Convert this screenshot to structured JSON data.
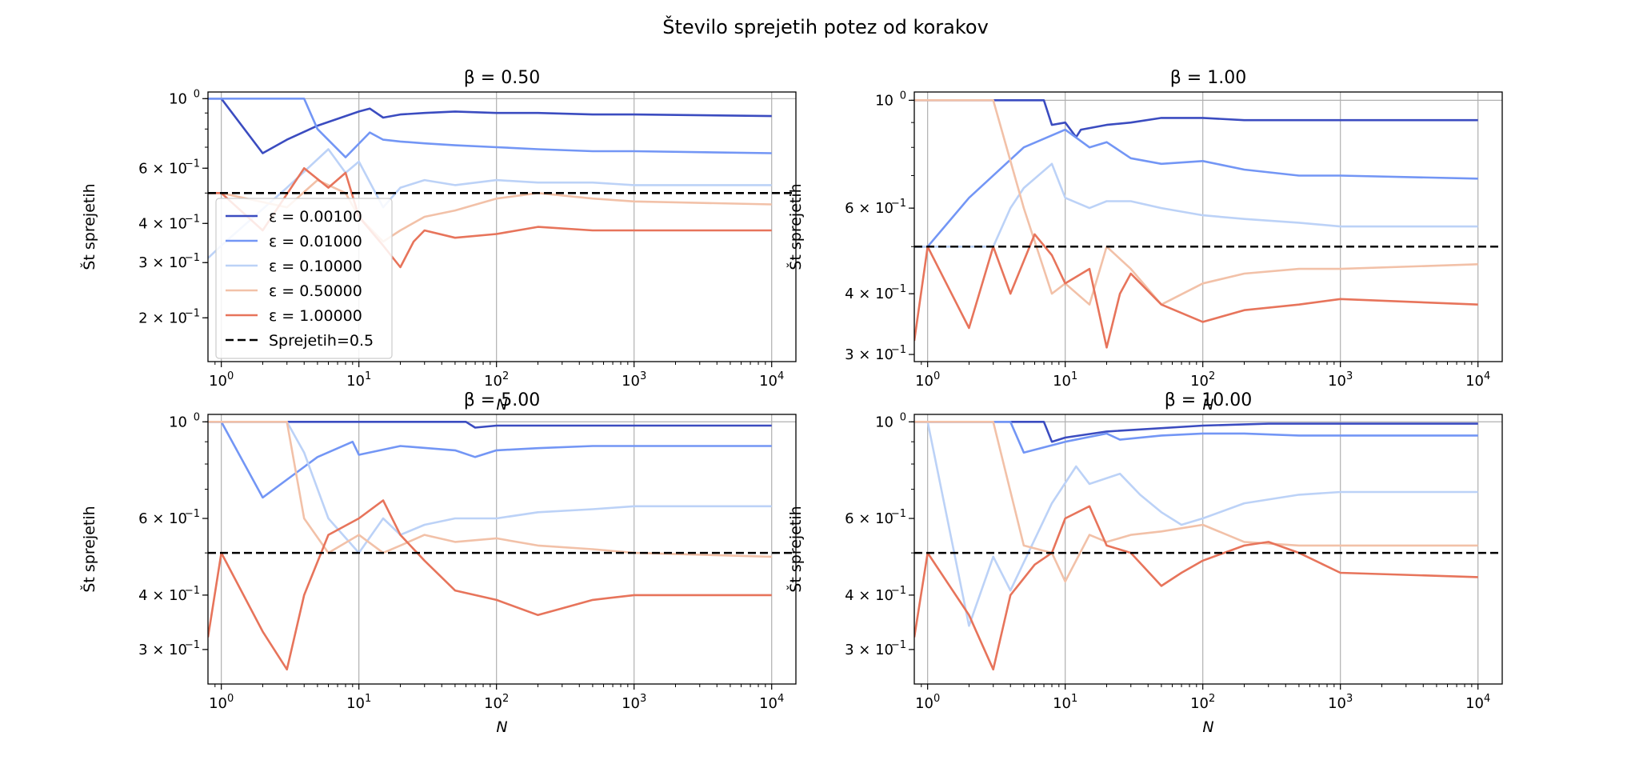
{
  "figure_title": "Število sprejetih potez od korakov",
  "chart_data": [
    {
      "type": "line",
      "title": "β = 0.50",
      "xlabel": "N",
      "ylabel": "Št sprejetih",
      "xscale": "log",
      "yscale": "log",
      "xlim": [
        0.8,
        15000
      ],
      "ylim": [
        0.145,
        1.05
      ],
      "xticks": [
        {
          "v": 1,
          "e": "0"
        },
        {
          "v": 10,
          "e": "1"
        },
        {
          "v": 100,
          "e": "2"
        },
        {
          "v": 1000,
          "e": "3"
        },
        {
          "v": 10000,
          "e": "4"
        }
      ],
      "yticks": [
        {
          "v": 1.0,
          "label": "10",
          "exp": "0"
        },
        {
          "v": 0.6,
          "label": "6 × 10",
          "exp": "−1"
        },
        {
          "v": 0.4,
          "label": "4 × 10",
          "exp": "−1"
        },
        {
          "v": 0.3,
          "label": "3 × 10",
          "exp": "−1"
        },
        {
          "v": 0.2,
          "label": "2 × 10",
          "exp": "−1"
        }
      ],
      "grid": true,
      "legend": "center-left",
      "reference_line": {
        "name": "Sprejetih=0.5",
        "y": 0.5,
        "color": "#000000"
      },
      "series": [
        {
          "name": "ε = 0.00100",
          "color": "#3b4cc0",
          "x": [
            0.8,
            1,
            2,
            3,
            5,
            10,
            12,
            15,
            20,
            30,
            50,
            100,
            200,
            500,
            1000,
            10000
          ],
          "y": [
            1.0,
            1.0,
            0.67,
            0.74,
            0.82,
            0.91,
            0.93,
            0.87,
            0.89,
            0.9,
            0.91,
            0.9,
            0.9,
            0.89,
            0.89,
            0.88
          ]
        },
        {
          "name": "ε = 0.01000",
          "color": "#7396f5",
          "x": [
            0.8,
            1,
            2,
            4,
            5,
            8,
            12,
            15,
            20,
            30,
            50,
            100,
            200,
            500,
            1000,
            10000
          ],
          "y": [
            1.0,
            1.0,
            1.0,
            1.0,
            0.8,
            0.65,
            0.78,
            0.74,
            0.73,
            0.72,
            0.71,
            0.7,
            0.69,
            0.68,
            0.68,
            0.67
          ]
        },
        {
          "name": "ε = 0.10000",
          "color": "#bcd2f7",
          "x": [
            0.8,
            1,
            3,
            6,
            8,
            10,
            15,
            20,
            30,
            50,
            100,
            200,
            500,
            1000,
            10000
          ],
          "y": [
            0.31,
            0.34,
            0.52,
            0.69,
            0.58,
            0.63,
            0.45,
            0.52,
            0.55,
            0.53,
            0.55,
            0.54,
            0.54,
            0.53,
            0.53
          ]
        },
        {
          "name": "ε = 0.50000",
          "color": "#f2c1a8",
          "x": [
            0.8,
            1,
            3,
            5,
            8,
            10,
            15,
            20,
            30,
            50,
            100,
            200,
            500,
            1000,
            10000
          ],
          "y": [
            0.5,
            0.5,
            0.45,
            0.55,
            0.5,
            0.42,
            0.35,
            0.38,
            0.42,
            0.44,
            0.48,
            0.5,
            0.48,
            0.47,
            0.46
          ]
        },
        {
          "name": "ε = 1.00000",
          "color": "#e7745b",
          "x": [
            0.8,
            1,
            2,
            4,
            6,
            8,
            10,
            15,
            20,
            25,
            30,
            50,
            100,
            200,
            500,
            1000,
            10000
          ],
          "y": [
            0.5,
            0.5,
            0.38,
            0.6,
            0.52,
            0.58,
            0.42,
            0.34,
            0.29,
            0.35,
            0.38,
            0.36,
            0.37,
            0.39,
            0.38,
            0.38,
            0.38
          ]
        }
      ]
    },
    {
      "type": "line",
      "title": "β = 1.00",
      "xlabel": "N",
      "ylabel": "Št sprejetih",
      "xscale": "log",
      "yscale": "log",
      "xlim": [
        0.8,
        15000
      ],
      "ylim": [
        0.29,
        1.04
      ],
      "xticks": [
        {
          "v": 1,
          "e": "0"
        },
        {
          "v": 10,
          "e": "1"
        },
        {
          "v": 100,
          "e": "2"
        },
        {
          "v": 1000,
          "e": "3"
        },
        {
          "v": 10000,
          "e": "4"
        }
      ],
      "yticks": [
        {
          "v": 1.0,
          "label": "10",
          "exp": "0"
        },
        {
          "v": 0.6,
          "label": "6 × 10",
          "exp": "−1"
        },
        {
          "v": 0.4,
          "label": "4 × 10",
          "exp": "−1"
        },
        {
          "v": 0.3,
          "label": "3 × 10",
          "exp": "−1"
        }
      ],
      "grid": true,
      "reference_line": {
        "name": "Sprejetih=0.5",
        "y": 0.5,
        "color": "#000000"
      },
      "series": [
        {
          "name": "ε = 0.00100",
          "color": "#3b4cc0",
          "x": [
            0.8,
            1,
            3,
            7,
            8,
            10,
            12,
            13,
            20,
            30,
            50,
            100,
            200,
            500,
            1000,
            10000
          ],
          "y": [
            1.0,
            1.0,
            1.0,
            1.0,
            0.89,
            0.9,
            0.84,
            0.87,
            0.89,
            0.9,
            0.92,
            0.92,
            0.91,
            0.91,
            0.91,
            0.91
          ]
        },
        {
          "name": "ε = 0.01000",
          "color": "#7396f5",
          "x": [
            0.8,
            1,
            2,
            5,
            10,
            15,
            20,
            30,
            50,
            100,
            200,
            500,
            1000,
            10000
          ],
          "y": [
            0.5,
            0.5,
            0.63,
            0.8,
            0.87,
            0.8,
            0.82,
            0.76,
            0.74,
            0.75,
            0.72,
            0.7,
            0.7,
            0.69
          ]
        },
        {
          "name": "ε = 0.10000",
          "color": "#bcd2f7",
          "x": [
            0.8,
            1,
            3,
            4,
            5,
            8,
            10,
            15,
            20,
            30,
            50,
            100,
            200,
            500,
            1000,
            10000
          ],
          "y": [
            0.5,
            0.5,
            0.5,
            0.6,
            0.66,
            0.74,
            0.63,
            0.6,
            0.62,
            0.62,
            0.6,
            0.58,
            0.57,
            0.56,
            0.55,
            0.55
          ]
        },
        {
          "name": "ε = 0.50000",
          "color": "#f2c1a8",
          "x": [
            0.8,
            1,
            3,
            5,
            8,
            10,
            15,
            20,
            30,
            50,
            100,
            200,
            500,
            1000,
            10000
          ],
          "y": [
            1.0,
            1.0,
            1.0,
            0.6,
            0.4,
            0.42,
            0.38,
            0.5,
            0.45,
            0.38,
            0.42,
            0.44,
            0.45,
            0.45,
            0.46
          ]
        },
        {
          "name": "ε = 1.00000",
          "color": "#e7745b",
          "x": [
            0.8,
            1,
            2,
            3,
            4,
            6,
            8,
            10,
            15,
            20,
            25,
            30,
            50,
            100,
            200,
            500,
            1000,
            10000
          ],
          "y": [
            0.32,
            0.5,
            0.34,
            0.5,
            0.4,
            0.53,
            0.48,
            0.42,
            0.45,
            0.31,
            0.4,
            0.44,
            0.38,
            0.35,
            0.37,
            0.38,
            0.39,
            0.38
          ]
        }
      ]
    },
    {
      "type": "line",
      "title": "β = 5.00",
      "xlabel": "N",
      "ylabel": "Št sprejetih",
      "xscale": "log",
      "yscale": "log",
      "xlim": [
        0.8,
        15000
      ],
      "ylim": [
        0.25,
        1.04
      ],
      "xticks": [
        {
          "v": 1,
          "e": "0"
        },
        {
          "v": 10,
          "e": "1"
        },
        {
          "v": 100,
          "e": "2"
        },
        {
          "v": 1000,
          "e": "3"
        },
        {
          "v": 10000,
          "e": "4"
        }
      ],
      "yticks": [
        {
          "v": 1.0,
          "label": "10",
          "exp": "0"
        },
        {
          "v": 0.6,
          "label": "6 × 10",
          "exp": "−1"
        },
        {
          "v": 0.4,
          "label": "4 × 10",
          "exp": "−1"
        },
        {
          "v": 0.3,
          "label": "3 × 10",
          "exp": "−1"
        }
      ],
      "grid": true,
      "reference_line": {
        "name": "Sprejetih=0.5",
        "y": 0.5,
        "color": "#000000"
      },
      "series": [
        {
          "name": "ε = 0.00100",
          "color": "#3b4cc0",
          "x": [
            0.8,
            1,
            60,
            70,
            100,
            200,
            500,
            1000,
            10000
          ],
          "y": [
            1.0,
            1.0,
            1.0,
            0.97,
            0.98,
            0.98,
            0.98,
            0.98,
            0.98
          ]
        },
        {
          "name": "ε = 0.01000",
          "color": "#7396f5",
          "x": [
            0.8,
            1,
            2,
            5,
            9,
            10,
            20,
            50,
            70,
            100,
            200,
            500,
            1000,
            10000
          ],
          "y": [
            1.0,
            1.0,
            0.67,
            0.83,
            0.9,
            0.84,
            0.88,
            0.86,
            0.83,
            0.86,
            0.87,
            0.88,
            0.88,
            0.88
          ]
        },
        {
          "name": "ε = 0.10000",
          "color": "#bcd2f7",
          "x": [
            0.8,
            1,
            3,
            4,
            6,
            10,
            15,
            20,
            30,
            50,
            100,
            200,
            500,
            1000,
            10000
          ],
          "y": [
            1.0,
            1.0,
            1.0,
            0.85,
            0.6,
            0.5,
            0.6,
            0.55,
            0.58,
            0.6,
            0.6,
            0.62,
            0.63,
            0.64,
            0.64
          ]
        },
        {
          "name": "ε = 0.50000",
          "color": "#f2c1a8",
          "x": [
            0.8,
            1,
            3,
            4,
            6,
            10,
            15,
            20,
            30,
            50,
            100,
            200,
            500,
            1000,
            10000
          ],
          "y": [
            1.0,
            1.0,
            1.0,
            0.6,
            0.5,
            0.55,
            0.5,
            0.52,
            0.55,
            0.53,
            0.54,
            0.52,
            0.51,
            0.5,
            0.49
          ]
        },
        {
          "name": "ε = 1.00000",
          "color": "#e7745b",
          "x": [
            0.8,
            1,
            2,
            3,
            4,
            6,
            10,
            15,
            20,
            30,
            50,
            100,
            200,
            500,
            1000,
            10000
          ],
          "y": [
            0.32,
            0.5,
            0.33,
            0.27,
            0.4,
            0.55,
            0.6,
            0.66,
            0.55,
            0.48,
            0.41,
            0.39,
            0.36,
            0.39,
            0.4,
            0.4
          ]
        }
      ]
    },
    {
      "type": "line",
      "title": "β = 10.00",
      "xlabel": "N",
      "ylabel": "Št sprejetih",
      "xscale": "log",
      "yscale": "log",
      "xlim": [
        0.8,
        15000
      ],
      "ylim": [
        0.25,
        1.04
      ],
      "xticks": [
        {
          "v": 1,
          "e": "0"
        },
        {
          "v": 10,
          "e": "1"
        },
        {
          "v": 100,
          "e": "2"
        },
        {
          "v": 1000,
          "e": "3"
        },
        {
          "v": 10000,
          "e": "4"
        }
      ],
      "yticks": [
        {
          "v": 1.0,
          "label": "10",
          "exp": "0"
        },
        {
          "v": 0.6,
          "label": "6 × 10",
          "exp": "−1"
        },
        {
          "v": 0.4,
          "label": "4 × 10",
          "exp": "−1"
        },
        {
          "v": 0.3,
          "label": "3 × 10",
          "exp": "−1"
        }
      ],
      "grid": true,
      "reference_line": {
        "name": "Sprejetih=0.5",
        "y": 0.5,
        "color": "#000000"
      },
      "series": [
        {
          "name": "ε = 0.00100",
          "color": "#3b4cc0",
          "x": [
            0.8,
            1,
            7,
            8,
            10,
            20,
            100,
            300,
            1000,
            10000
          ],
          "y": [
            1.0,
            1.0,
            1.0,
            0.9,
            0.92,
            0.95,
            0.98,
            0.99,
            0.99,
            0.99
          ]
        },
        {
          "name": "ε = 0.01000",
          "color": "#7396f5",
          "x": [
            0.8,
            1,
            4,
            5,
            10,
            20,
            25,
            50,
            100,
            200,
            500,
            1000,
            10000
          ],
          "y": [
            1.0,
            1.0,
            1.0,
            0.85,
            0.9,
            0.94,
            0.91,
            0.93,
            0.94,
            0.94,
            0.93,
            0.93,
            0.93
          ]
        },
        {
          "name": "ε = 0.10000",
          "color": "#bcd2f7",
          "x": [
            0.8,
            1,
            2,
            3,
            4,
            8,
            12,
            15,
            25,
            35,
            50,
            70,
            100,
            200,
            500,
            1000,
            10000
          ],
          "y": [
            1.0,
            1.0,
            0.34,
            0.49,
            0.41,
            0.65,
            0.79,
            0.72,
            0.76,
            0.68,
            0.62,
            0.58,
            0.6,
            0.65,
            0.68,
            0.69,
            0.69
          ]
        },
        {
          "name": "ε = 0.50000",
          "color": "#f2c1a8",
          "x": [
            0.8,
            1,
            3,
            5,
            8,
            10,
            15,
            20,
            30,
            50,
            100,
            200,
            500,
            1000,
            10000
          ],
          "y": [
            1.0,
            1.0,
            1.0,
            0.52,
            0.5,
            0.43,
            0.55,
            0.53,
            0.55,
            0.56,
            0.58,
            0.53,
            0.52,
            0.52,
            0.52
          ]
        },
        {
          "name": "ε = 1.00000",
          "color": "#e7745b",
          "x": [
            0.8,
            1,
            2,
            3,
            4,
            6,
            8,
            10,
            15,
            20,
            30,
            50,
            70,
            100,
            200,
            300,
            500,
            1000,
            10000
          ],
          "y": [
            0.32,
            0.5,
            0.36,
            0.27,
            0.4,
            0.47,
            0.5,
            0.6,
            0.64,
            0.52,
            0.5,
            0.42,
            0.45,
            0.48,
            0.52,
            0.53,
            0.5,
            0.45,
            0.44
          ]
        }
      ]
    }
  ]
}
